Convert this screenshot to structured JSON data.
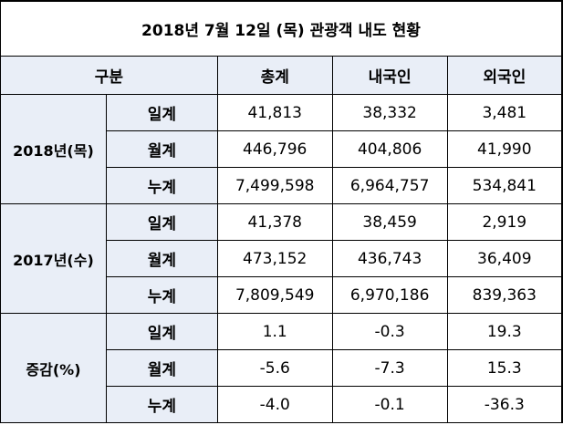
{
  "title": "2018년 7월 12일 (목) 관광객 내도 현황",
  "header": {
    "category": "구분",
    "total": "총계",
    "domestic": "내국인",
    "foreign": "외국인"
  },
  "groups": [
    {
      "label": "2018년(목)",
      "rows": [
        {
          "label": "일계",
          "total": "41,813",
          "domestic": "38,332",
          "foreign": "3,481"
        },
        {
          "label": "월계",
          "total": "446,796",
          "domestic": "404,806",
          "foreign": "41,990"
        },
        {
          "label": "누계",
          "total": "7,499,598",
          "domestic": "6,964,757",
          "foreign": "534,841"
        }
      ]
    },
    {
      "label": "2017년(수)",
      "rows": [
        {
          "label": "일계",
          "total": "41,378",
          "domestic": "38,459",
          "foreign": "2,919"
        },
        {
          "label": "월계",
          "total": "473,152",
          "domestic": "436,743",
          "foreign": "36,409"
        },
        {
          "label": "누계",
          "total": "7,809,549",
          "domestic": "6,970,186",
          "foreign": "839,363"
        }
      ]
    },
    {
      "label": "증감(%)",
      "rows": [
        {
          "label": "일계",
          "total": "1.1",
          "domestic": "-0.3",
          "foreign": "19.3"
        },
        {
          "label": "월계",
          "total": "-5.6",
          "domestic": "-7.3",
          "foreign": "15.3"
        },
        {
          "label": "누계",
          "total": "-4.0",
          "domestic": "-0.1",
          "foreign": "-36.3"
        }
      ]
    }
  ]
}
